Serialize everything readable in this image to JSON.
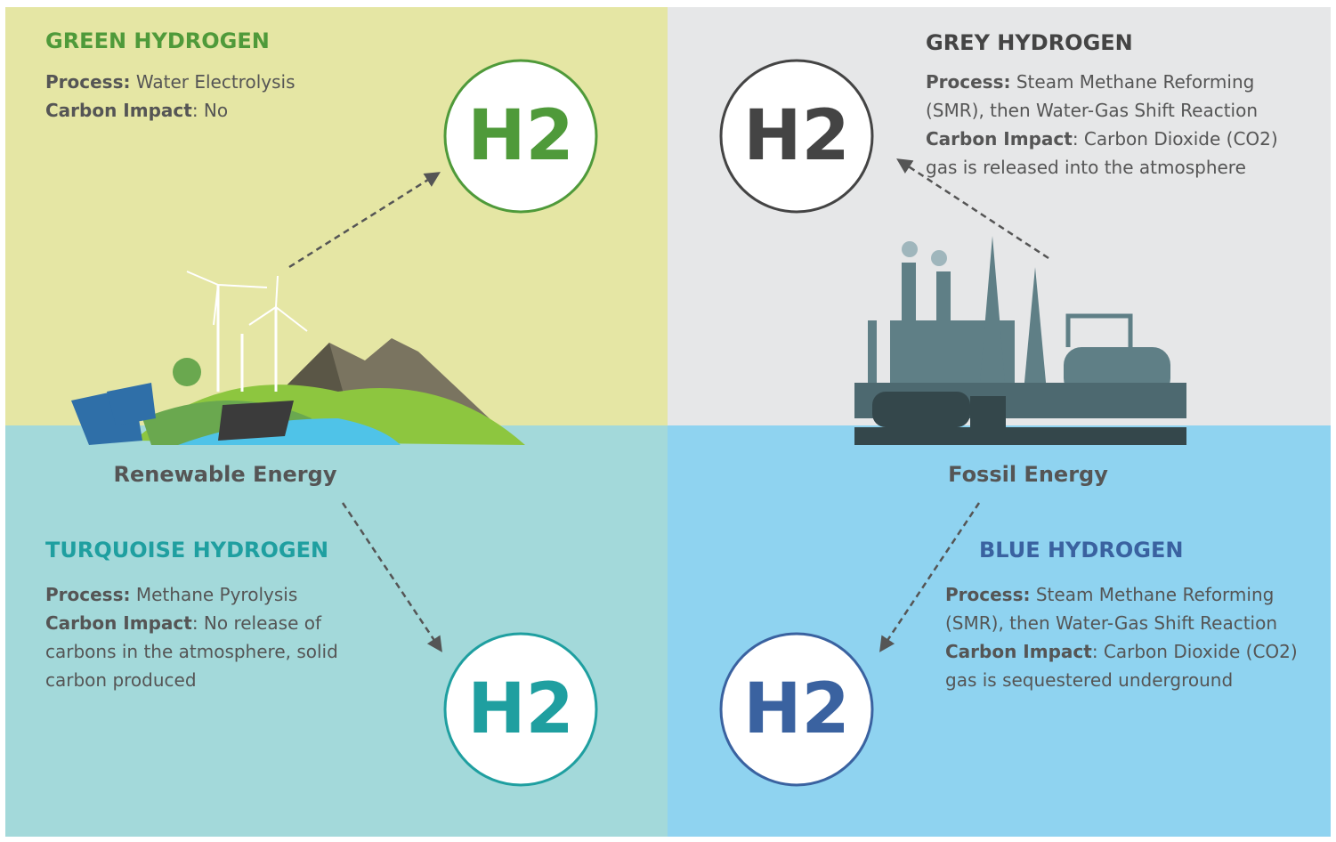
{
  "quadrants": [
    {
      "title": "GREEN HYDROGEN",
      "process_label": "Process:",
      "process": "Water Electrolysis",
      "impact_label": "Carbon Impact",
      "impact": ": No",
      "badge": "H2"
    },
    {
      "title": "GREY HYDROGEN",
      "process_label": "Process:",
      "process": "Steam Methane Reforming (SMR), then Water-Gas Shift Reaction",
      "impact_label": "Carbon Impact",
      "impact": ": Carbon Dioxide (CO2) gas is released into the atmosphere",
      "badge": "H2"
    },
    {
      "title": "TURQUOISE HYDROGEN",
      "process_label": "Process:",
      "process": "Methane Pyrolysis",
      "impact_label": "Carbon Impact",
      "impact": ": No release of carbons in the atmosphere, solid carbon produced",
      "badge": "H2"
    },
    {
      "title": "BLUE HYDROGEN",
      "process_label": "Process:",
      "process": "Steam Methane Reforming (SMR), then Water-Gas Shift Reaction",
      "impact_label": "Carbon Impact",
      "impact": ": Carbon Dioxide (CO2) gas is sequestered underground",
      "badge": "H2"
    }
  ],
  "sources": [
    {
      "label": "Renewable Energy"
    },
    {
      "label": "Fossil Energy"
    }
  ]
}
